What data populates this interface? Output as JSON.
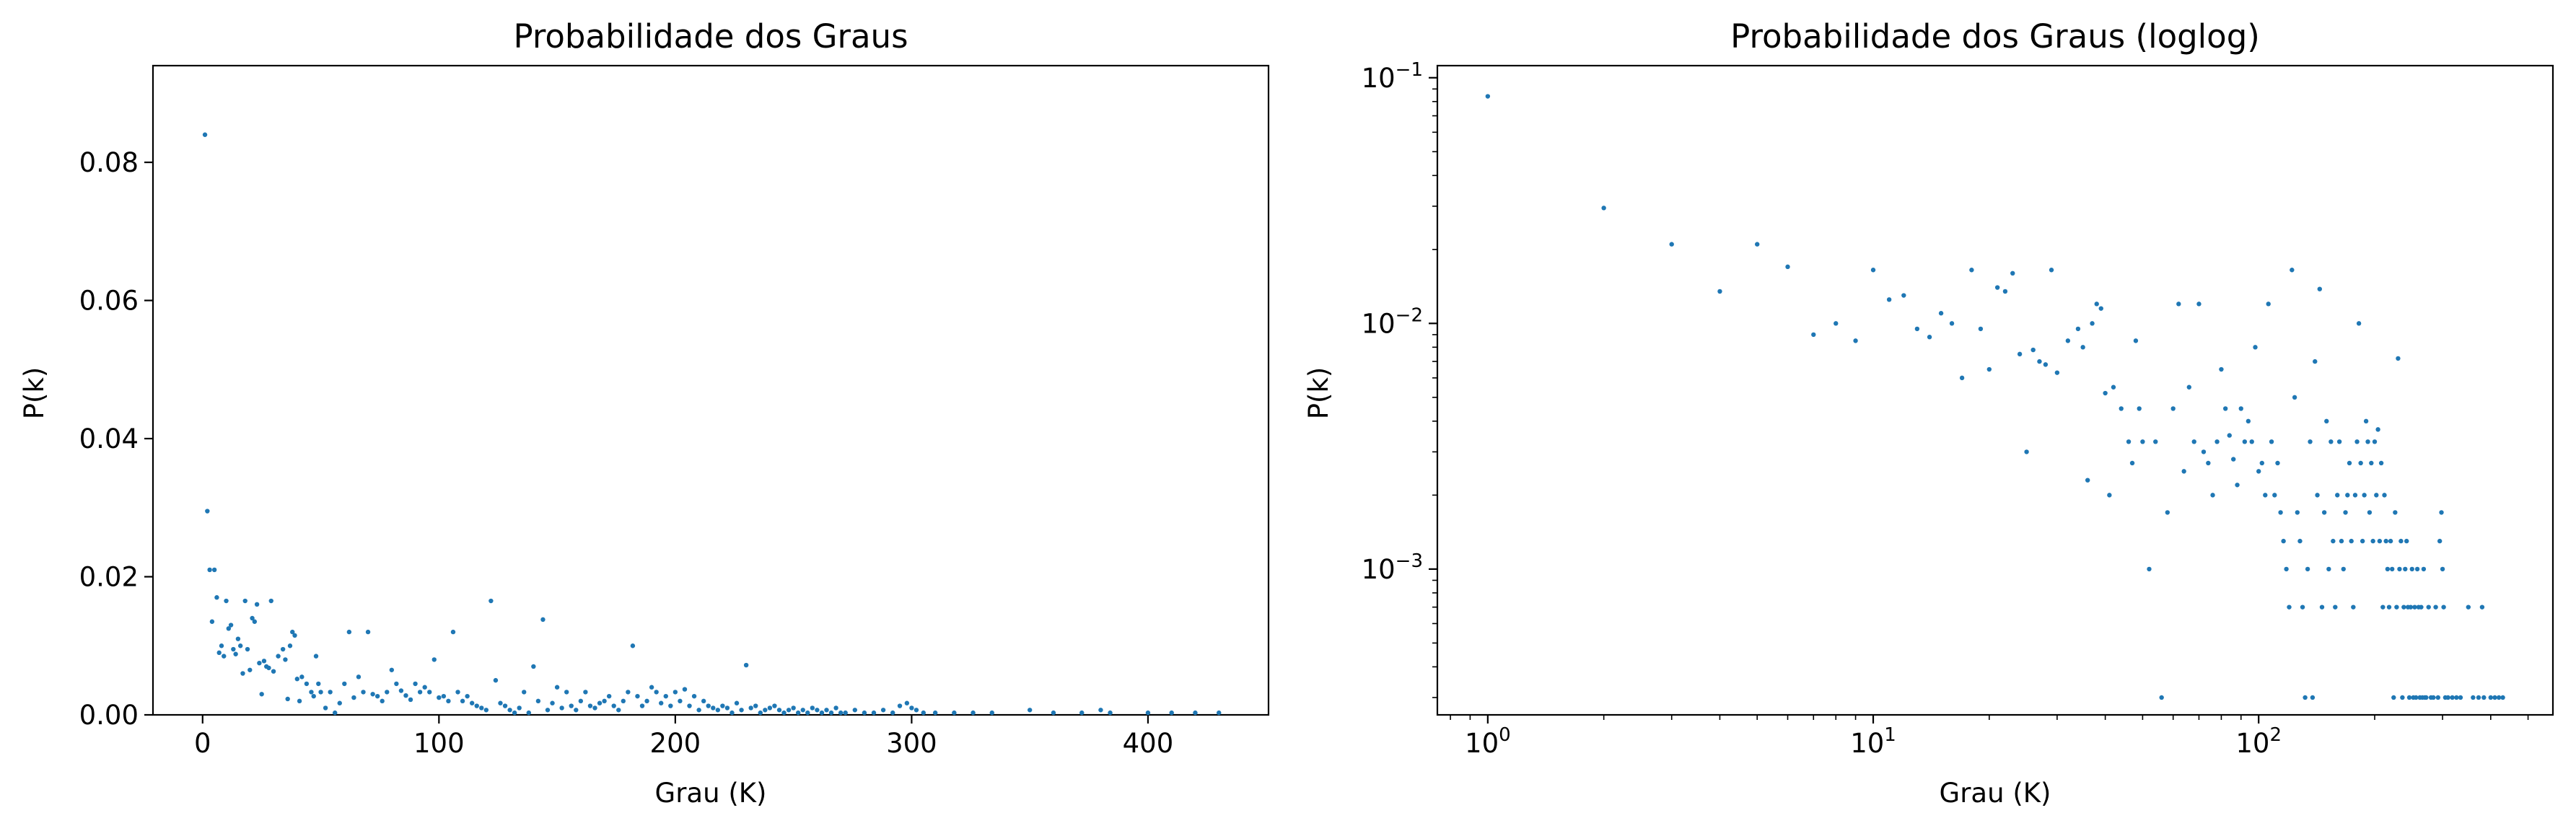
{
  "chart_data": [
    {
      "type": "scatter",
      "title": "Probabilidade dos Graus",
      "xlabel": "Grau (K)",
      "ylabel": "P(k)",
      "xscale": "linear",
      "yscale": "linear",
      "xlim": [
        -21,
        451
      ],
      "ylim": [
        0,
        0.094
      ],
      "xticks": [
        0,
        100,
        200,
        300,
        400
      ],
      "yticks": [
        0.0,
        0.02,
        0.04,
        0.06,
        0.08
      ],
      "ytick_labels": [
        "0.00",
        "0.02",
        "0.04",
        "0.06",
        "0.08"
      ],
      "grid": false,
      "series": [
        {
          "color": "#1f77b4",
          "points": [
            [
              1,
              0.084
            ],
            [
              2,
              0.0295
            ],
            [
              3,
              0.021
            ],
            [
              4,
              0.0135
            ],
            [
              5,
              0.021
            ],
            [
              6,
              0.017
            ],
            [
              7,
              0.009
            ],
            [
              8,
              0.01
            ],
            [
              9,
              0.0085
            ],
            [
              10,
              0.0165
            ],
            [
              11,
              0.0125
            ],
            [
              12,
              0.013
            ],
            [
              13,
              0.0095
            ],
            [
              14,
              0.0088
            ],
            [
              15,
              0.011
            ],
            [
              16,
              0.01
            ],
            [
              17,
              0.006
            ],
            [
              18,
              0.0165
            ],
            [
              19,
              0.0095
            ],
            [
              20,
              0.0065
            ],
            [
              21,
              0.014
            ],
            [
              22,
              0.0135
            ],
            [
              23,
              0.016
            ],
            [
              24,
              0.0075
            ],
            [
              25,
              0.003
            ],
            [
              26,
              0.0078
            ],
            [
              27,
              0.007
            ],
            [
              28,
              0.0068
            ],
            [
              29,
              0.0165
            ],
            [
              30,
              0.0063
            ],
            [
              32,
              0.0085
            ],
            [
              34,
              0.0095
            ],
            [
              35,
              0.008
            ],
            [
              36,
              0.0023
            ],
            [
              37,
              0.01
            ],
            [
              38,
              0.012
            ],
            [
              39,
              0.0115
            ],
            [
              40,
              0.0052
            ],
            [
              41,
              0.002
            ],
            [
              42,
              0.0055
            ],
            [
              44,
              0.0045
            ],
            [
              46,
              0.0033
            ],
            [
              47,
              0.0027
            ],
            [
              48,
              0.0085
            ],
            [
              49,
              0.0045
            ],
            [
              50,
              0.0033
            ],
            [
              52,
              0.001
            ],
            [
              54,
              0.0033
            ],
            [
              56,
              0.0003
            ],
            [
              58,
              0.0017
            ],
            [
              60,
              0.0045
            ],
            [
              62,
              0.012
            ],
            [
              64,
              0.0025
            ],
            [
              66,
              0.0055
            ],
            [
              68,
              0.0033
            ],
            [
              70,
              0.012
            ],
            [
              72,
              0.003
            ],
            [
              74,
              0.0027
            ],
            [
              76,
              0.002
            ],
            [
              78,
              0.0033
            ],
            [
              80,
              0.0065
            ],
            [
              82,
              0.0045
            ],
            [
              84,
              0.0035
            ],
            [
              86,
              0.0028
            ],
            [
              88,
              0.0022
            ],
            [
              90,
              0.0045
            ],
            [
              92,
              0.0033
            ],
            [
              94,
              0.004
            ],
            [
              96,
              0.0033
            ],
            [
              98,
              0.008
            ],
            [
              100,
              0.0025
            ],
            [
              102,
              0.0027
            ],
            [
              104,
              0.002
            ],
            [
              106,
              0.012
            ],
            [
              108,
              0.0033
            ],
            [
              110,
              0.002
            ],
            [
              112,
              0.0027
            ],
            [
              114,
              0.0017
            ],
            [
              116,
              0.0013
            ],
            [
              118,
              0.001
            ],
            [
              120,
              0.0007
            ],
            [
              122,
              0.0165
            ],
            [
              124,
              0.005
            ],
            [
              126,
              0.0017
            ],
            [
              128,
              0.0013
            ],
            [
              130,
              0.0007
            ],
            [
              132,
              0.0003
            ],
            [
              134,
              0.001
            ],
            [
              136,
              0.0033
            ],
            [
              138,
              0.0003
            ],
            [
              140,
              0.007
            ],
            [
              142,
              0.002
            ],
            [
              144,
              0.0138
            ],
            [
              146,
              0.0007
            ],
            [
              148,
              0.0017
            ],
            [
              150,
              0.004
            ],
            [
              152,
              0.001
            ],
            [
              154,
              0.0033
            ],
            [
              156,
              0.0013
            ],
            [
              158,
              0.0007
            ],
            [
              160,
              0.002
            ],
            [
              162,
              0.0033
            ],
            [
              164,
              0.0013
            ],
            [
              166,
              0.001
            ],
            [
              168,
              0.0017
            ],
            [
              170,
              0.002
            ],
            [
              172,
              0.0027
            ],
            [
              174,
              0.0013
            ],
            [
              176,
              0.0007
            ],
            [
              178,
              0.002
            ],
            [
              180,
              0.0033
            ],
            [
              182,
              0.01
            ],
            [
              184,
              0.0027
            ],
            [
              186,
              0.0013
            ],
            [
              188,
              0.002
            ],
            [
              190,
              0.004
            ],
            [
              192,
              0.0033
            ],
            [
              194,
              0.0017
            ],
            [
              196,
              0.0027
            ],
            [
              198,
              0.0013
            ],
            [
              200,
              0.0033
            ],
            [
              202,
              0.002
            ],
            [
              204,
              0.0037
            ],
            [
              206,
              0.0013
            ],
            [
              208,
              0.0027
            ],
            [
              210,
              0.0007
            ],
            [
              212,
              0.002
            ],
            [
              214,
              0.0013
            ],
            [
              216,
              0.001
            ],
            [
              218,
              0.0007
            ],
            [
              220,
              0.0013
            ],
            [
              222,
              0.001
            ],
            [
              224,
              0.0003
            ],
            [
              226,
              0.0017
            ],
            [
              228,
              0.0007
            ],
            [
              230,
              0.0072
            ],
            [
              232,
              0.001
            ],
            [
              234,
              0.0013
            ],
            [
              236,
              0.0003
            ],
            [
              238,
              0.0007
            ],
            [
              240,
              0.001
            ],
            [
              242,
              0.0013
            ],
            [
              244,
              0.0007
            ],
            [
              246,
              0.0003
            ],
            [
              248,
              0.0007
            ],
            [
              250,
              0.001
            ],
            [
              252,
              0.0003
            ],
            [
              254,
              0.0007
            ],
            [
              256,
              0.0003
            ],
            [
              258,
              0.001
            ],
            [
              260,
              0.0007
            ],
            [
              262,
              0.0003
            ],
            [
              264,
              0.0007
            ],
            [
              266,
              0.0003
            ],
            [
              268,
              0.001
            ],
            [
              270,
              0.0003
            ],
            [
              272,
              0.0003
            ],
            [
              276,
              0.0007
            ],
            [
              280,
              0.0003
            ],
            [
              284,
              0.0003
            ],
            [
              288,
              0.0007
            ],
            [
              292,
              0.0003
            ],
            [
              295,
              0.0013
            ],
            [
              298,
              0.0017
            ],
            [
              300,
              0.001
            ],
            [
              302,
              0.0007
            ],
            [
              305,
              0.0003
            ],
            [
              310,
              0.0003
            ],
            [
              318,
              0.0003
            ],
            [
              326,
              0.0003
            ],
            [
              334,
              0.0003
            ],
            [
              350,
              0.0007
            ],
            [
              360,
              0.0003
            ],
            [
              372,
              0.0003
            ],
            [
              380,
              0.0007
            ],
            [
              384,
              0.0003
            ],
            [
              400,
              0.0003
            ],
            [
              410,
              0.0003
            ],
            [
              420,
              0.0003
            ],
            [
              430,
              0.0003
            ]
          ]
        }
      ]
    },
    {
      "type": "scatter",
      "title": "Probabilidade dos Graus (loglog)",
      "xlabel": "Grau (K)",
      "ylabel": "P(k)",
      "xscale": "log",
      "yscale": "log",
      "xlim": [
        0.74,
        580
      ],
      "ylim": [
        0.000255,
        0.112
      ],
      "xticks": [
        1,
        10,
        100
      ],
      "xtick_labels": [
        {
          "base": "10",
          "exp": "0"
        },
        {
          "base": "10",
          "exp": "1"
        },
        {
          "base": "10",
          "exp": "2"
        }
      ],
      "yticks": [
        0.001,
        0.01,
        0.1
      ],
      "ytick_labels": [
        {
          "base": "10",
          "exp": "−3"
        },
        {
          "base": "10",
          "exp": "−2"
        },
        {
          "base": "10",
          "exp": "−1"
        }
      ],
      "grid": false,
      "series": [
        {
          "color": "#1f77b4",
          "points": "same-as-panel-1"
        }
      ]
    }
  ]
}
